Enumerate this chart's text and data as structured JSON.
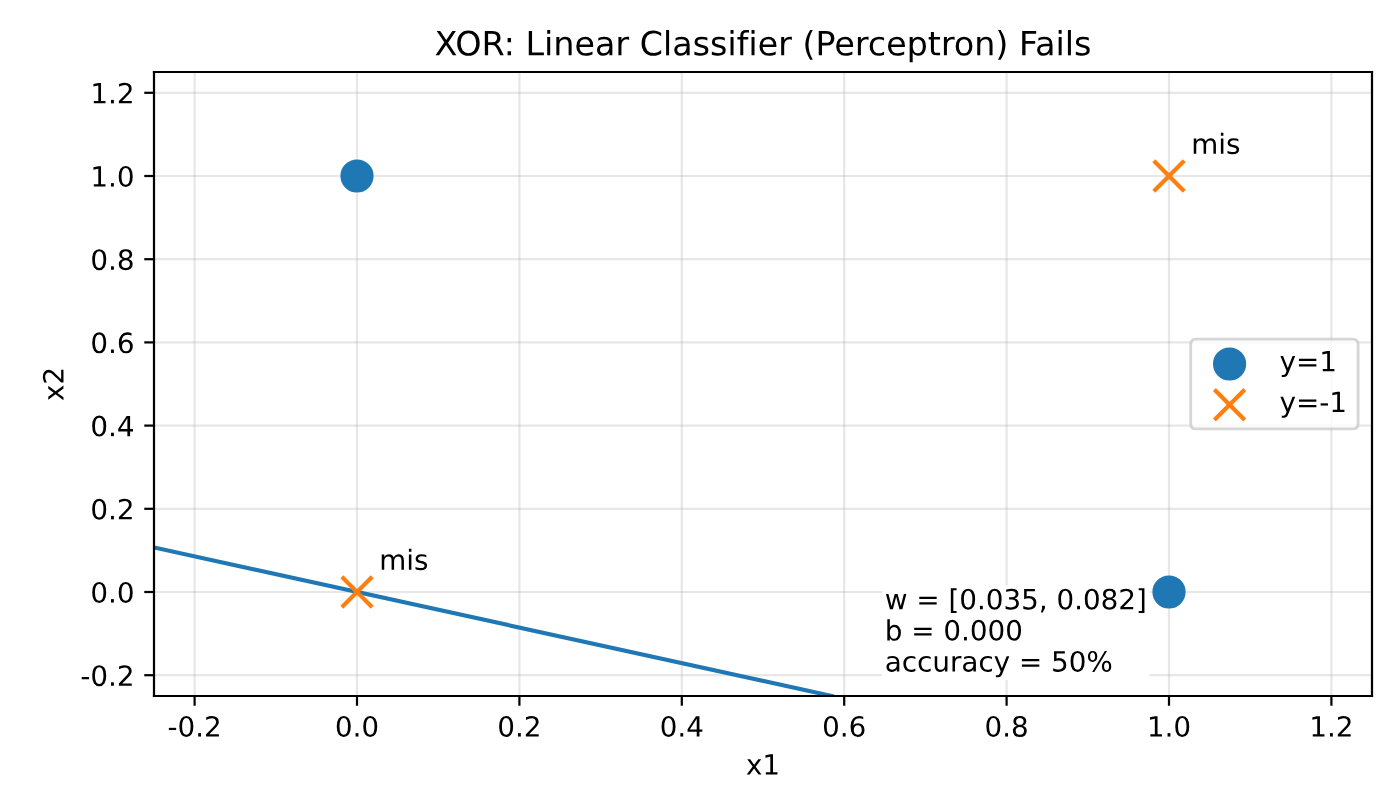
{
  "chart_data": {
    "type": "scatter",
    "title": "XOR: Linear Classifier (Perceptron) Fails",
    "xlabel": "x1",
    "ylabel": "x2",
    "xlim": [
      -0.25,
      1.25
    ],
    "ylim": [
      -0.25,
      1.25
    ],
    "xticks": [
      -0.2,
      {
        "value": 0,
        "label": "0.0"
      },
      0.2,
      0.4,
      0.6,
      0.8,
      {
        "value": 1,
        "label": "1.0"
      },
      1.2
    ],
    "yticks": [
      -0.2,
      {
        "value": 0,
        "label": "0.0"
      },
      0.2,
      0.4,
      0.6,
      0.8,
      {
        "value": 1,
        "label": "1.0"
      },
      1.2
    ],
    "grid": true,
    "legend": "right",
    "series": [
      {
        "name": "y=1",
        "color": "#1f77b4",
        "marker": "circle",
        "x": [
          0,
          1
        ],
        "values": [
          1,
          0
        ]
      },
      {
        "name": "y=-1",
        "color": "#ff7f0e",
        "marker": "cross",
        "x": [
          0,
          1
        ],
        "values": [
          0,
          1
        ]
      },
      {
        "type": "line",
        "color": "#1f77b4",
        "x": [
          -0.25,
          0.585
        ],
        "values": [
          0.107,
          -0.25
        ]
      }
    ],
    "annotations": [
      {
        "text": "mis",
        "x": 0,
        "y": 0
      },
      {
        "text": "mis",
        "x": 1,
        "y": 1
      },
      "w = [0.035, 0.082]\nb = 0.000\naccuracy = 50%"
    ]
  }
}
